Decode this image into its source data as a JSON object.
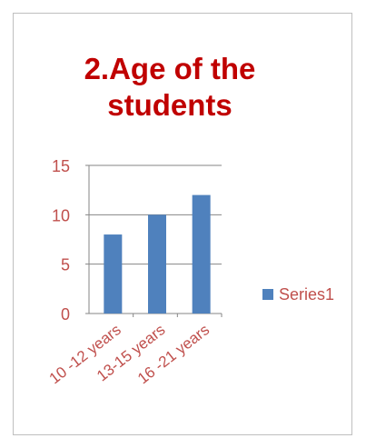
{
  "chart_data": {
    "type": "bar",
    "title": "2.Age of the students",
    "categories": [
      "10 -12 years",
      "13-15 years",
      "16 -21 years"
    ],
    "series": [
      {
        "name": "Series1",
        "values": [
          8,
          10,
          12
        ]
      }
    ],
    "ylim": [
      0,
      15
    ],
    "yticks": [
      0,
      5,
      10,
      15
    ],
    "grid": true,
    "legend": "right",
    "colors": {
      "bar": "#4f81bd",
      "text": "#c0504d",
      "title": "#c00000",
      "grid": "#868686"
    }
  }
}
